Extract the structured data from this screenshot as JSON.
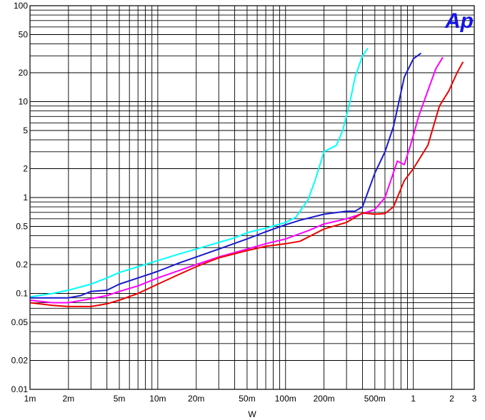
{
  "chart_data": {
    "type": "line",
    "title": "",
    "xlabel": "W",
    "ylabel": "",
    "x_scale": "log",
    "y_scale": "log",
    "xlim": [
      0.001,
      3
    ],
    "ylim": [
      0.01,
      100
    ],
    "grid": true,
    "legend": "none",
    "logo_text": "Ap",
    "logo_color": "#1515e6",
    "x_ticks": [
      {
        "value": 0.001,
        "label": "1m"
      },
      {
        "value": 0.002,
        "label": "2m"
      },
      {
        "value": 0.005,
        "label": "5m"
      },
      {
        "value": 0.01,
        "label": "10m"
      },
      {
        "value": 0.02,
        "label": "20m"
      },
      {
        "value": 0.05,
        "label": "50m"
      },
      {
        "value": 0.1,
        "label": "100m"
      },
      {
        "value": 0.2,
        "label": "200m"
      },
      {
        "value": 0.5,
        "label": "500m"
      },
      {
        "value": 1,
        "label": "1"
      },
      {
        "value": 2,
        "label": "2"
      },
      {
        "value": 3,
        "label": "3"
      }
    ],
    "y_ticks": [
      {
        "value": 0.01,
        "label": "0.01"
      },
      {
        "value": 0.02,
        "label": "0.02"
      },
      {
        "value": 0.05,
        "label": "0.05"
      },
      {
        "value": 0.1,
        "label": "0.1"
      },
      {
        "value": 0.2,
        "label": "0.2"
      },
      {
        "value": 0.5,
        "label": "0.5"
      },
      {
        "value": 1,
        "label": "1"
      },
      {
        "value": 2,
        "label": "2"
      },
      {
        "value": 5,
        "label": "5"
      },
      {
        "value": 10,
        "label": "10"
      },
      {
        "value": 20,
        "label": "20"
      },
      {
        "value": 50,
        "label": "50"
      },
      {
        "value": 100,
        "label": "100"
      }
    ],
    "series": [
      {
        "color": "#00ffff",
        "points": [
          [
            0.001,
            0.092
          ],
          [
            0.0015,
            0.1
          ],
          [
            0.002,
            0.108
          ],
          [
            0.003,
            0.125
          ],
          [
            0.004,
            0.145
          ],
          [
            0.005,
            0.165
          ],
          [
            0.007,
            0.19
          ],
          [
            0.01,
            0.22
          ],
          [
            0.015,
            0.26
          ],
          [
            0.02,
            0.29
          ],
          [
            0.03,
            0.34
          ],
          [
            0.04,
            0.38
          ],
          [
            0.05,
            0.43
          ],
          [
            0.07,
            0.48
          ],
          [
            0.1,
            0.55
          ],
          [
            0.12,
            0.62
          ],
          [
            0.13,
            0.72
          ],
          [
            0.15,
            0.95
          ],
          [
            0.17,
            1.5
          ],
          [
            0.2,
            3.0
          ],
          [
            0.25,
            3.5
          ],
          [
            0.28,
            5.0
          ],
          [
            0.32,
            10
          ],
          [
            0.35,
            18
          ],
          [
            0.4,
            30
          ],
          [
            0.44,
            36
          ]
        ]
      },
      {
        "color": "#1a1ad0",
        "points": [
          [
            0.001,
            0.09
          ],
          [
            0.0015,
            0.09
          ],
          [
            0.002,
            0.09
          ],
          [
            0.0025,
            0.095
          ],
          [
            0.003,
            0.105
          ],
          [
            0.004,
            0.108
          ],
          [
            0.005,
            0.125
          ],
          [
            0.007,
            0.145
          ],
          [
            0.01,
            0.17
          ],
          [
            0.015,
            0.21
          ],
          [
            0.02,
            0.24
          ],
          [
            0.03,
            0.29
          ],
          [
            0.05,
            0.37
          ],
          [
            0.07,
            0.44
          ],
          [
            0.1,
            0.52
          ],
          [
            0.13,
            0.58
          ],
          [
            0.2,
            0.67
          ],
          [
            0.3,
            0.72
          ],
          [
            0.35,
            0.72
          ],
          [
            0.4,
            0.8
          ],
          [
            0.5,
            1.8
          ],
          [
            0.6,
            3.0
          ],
          [
            0.7,
            5.5
          ],
          [
            0.85,
            18
          ],
          [
            1.0,
            28
          ],
          [
            1.15,
            32
          ]
        ]
      },
      {
        "color": "#ff00ff",
        "points": [
          [
            0.001,
            0.085
          ],
          [
            0.0015,
            0.08
          ],
          [
            0.002,
            0.08
          ],
          [
            0.003,
            0.088
          ],
          [
            0.004,
            0.095
          ],
          [
            0.005,
            0.105
          ],
          [
            0.007,
            0.12
          ],
          [
            0.01,
            0.145
          ],
          [
            0.015,
            0.175
          ],
          [
            0.02,
            0.2
          ],
          [
            0.03,
            0.24
          ],
          [
            0.05,
            0.29
          ],
          [
            0.07,
            0.33
          ],
          [
            0.1,
            0.37
          ],
          [
            0.15,
            0.45
          ],
          [
            0.2,
            0.53
          ],
          [
            0.3,
            0.6
          ],
          [
            0.4,
            0.68
          ],
          [
            0.5,
            0.75
          ],
          [
            0.6,
            1.0
          ],
          [
            0.75,
            2.4
          ],
          [
            0.85,
            2.2
          ],
          [
            0.95,
            3.5
          ],
          [
            1.1,
            7.0
          ],
          [
            1.3,
            13
          ],
          [
            1.5,
            22
          ],
          [
            1.7,
            29
          ]
        ]
      },
      {
        "color": "#ee0000",
        "points": [
          [
            0.001,
            0.08
          ],
          [
            0.0015,
            0.075
          ],
          [
            0.002,
            0.073
          ],
          [
            0.003,
            0.073
          ],
          [
            0.004,
            0.078
          ],
          [
            0.005,
            0.085
          ],
          [
            0.007,
            0.1
          ],
          [
            0.01,
            0.125
          ],
          [
            0.015,
            0.16
          ],
          [
            0.02,
            0.19
          ],
          [
            0.03,
            0.235
          ],
          [
            0.05,
            0.28
          ],
          [
            0.07,
            0.31
          ],
          [
            0.1,
            0.33
          ],
          [
            0.13,
            0.35
          ],
          [
            0.2,
            0.47
          ],
          [
            0.3,
            0.55
          ],
          [
            0.35,
            0.62
          ],
          [
            0.4,
            0.69
          ],
          [
            0.5,
            0.67
          ],
          [
            0.6,
            0.68
          ],
          [
            0.7,
            0.8
          ],
          [
            0.85,
            1.5
          ],
          [
            1.0,
            2.0
          ],
          [
            1.3,
            3.5
          ],
          [
            1.6,
            9.0
          ],
          [
            1.9,
            13
          ],
          [
            2.2,
            20
          ],
          [
            2.45,
            26
          ]
        ]
      }
    ]
  }
}
